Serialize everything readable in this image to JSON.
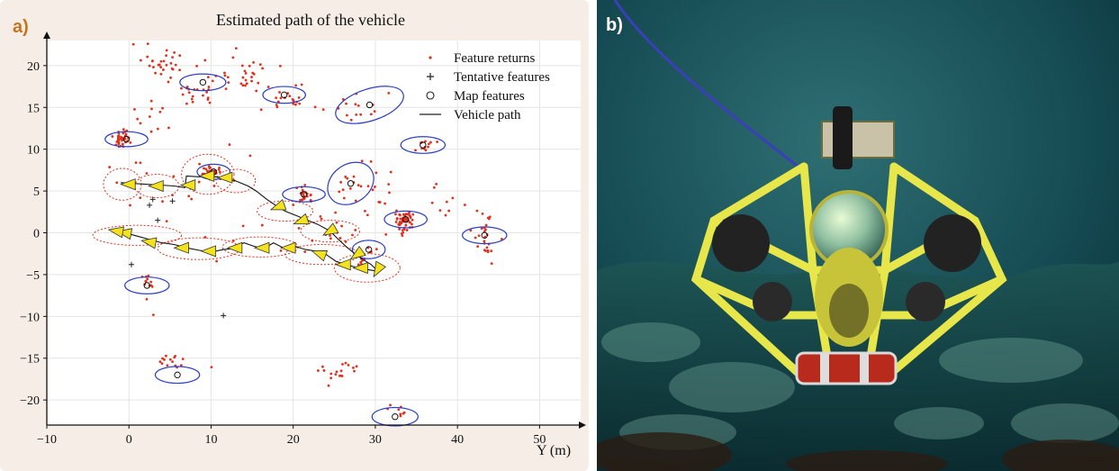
{
  "panel_a": {
    "label": "a)",
    "chart_data": {
      "type": "scatter",
      "title": "Estimated path of the vehicle",
      "xlabel": "Y (m)",
      "ylabel": "",
      "xlim": [
        -10,
        55
      ],
      "ylim": [
        -23,
        23
      ],
      "xticks": [
        -10,
        0,
        10,
        20,
        30,
        40,
        50
      ],
      "yticks": [
        -20,
        -15,
        -10,
        -5,
        0,
        5,
        10,
        15,
        20
      ],
      "grid": true,
      "legend_position": "top-right",
      "legend": [
        {
          "label": "Feature returns",
          "marker": "dot",
          "color": "#e0311f"
        },
        {
          "label": "Tentative features",
          "marker": "plus",
          "color": "#222222"
        },
        {
          "label": "Map features",
          "marker": "circle",
          "color": "#222222"
        },
        {
          "label": "Vehicle path",
          "marker": "line",
          "color": "#222222"
        }
      ],
      "colors": {
        "feature_returns": "#e0311f",
        "ellipse": "#2b3ec8",
        "vehicle_path": "#111111",
        "uncertainty": "#e0311f",
        "vehicle_pose": "#f4e21c"
      },
      "map_features": [
        {
          "x": 9.0,
          "y": 18.0,
          "rx": 2.8,
          "ry": 1.0,
          "angle": 0
        },
        {
          "x": 18.9,
          "y": 16.5,
          "rx": 2.6,
          "ry": 1.0,
          "angle": 0
        },
        {
          "x": 29.3,
          "y": 15.3,
          "rx": 4.3,
          "ry": 1.9,
          "angle": -18
        },
        {
          "x": -0.3,
          "y": 11.2,
          "rx": 2.6,
          "ry": 0.9,
          "angle": 0
        },
        {
          "x": 35.8,
          "y": 10.5,
          "rx": 2.7,
          "ry": 1.0,
          "angle": 0
        },
        {
          "x": 10.3,
          "y": 7.3,
          "rx": 2.0,
          "ry": 0.9,
          "angle": 0
        },
        {
          "x": 27.0,
          "y": 5.9,
          "rx": 3.0,
          "ry": 2.3,
          "angle": -35
        },
        {
          "x": 21.3,
          "y": 4.6,
          "rx": 2.6,
          "ry": 0.9,
          "angle": 0
        },
        {
          "x": 33.7,
          "y": 1.6,
          "rx": 2.6,
          "ry": 1.0,
          "angle": 0
        },
        {
          "x": 43.3,
          "y": -0.3,
          "rx": 2.7,
          "ry": 1.0,
          "angle": 0
        },
        {
          "x": 29.2,
          "y": -2.0,
          "rx": 2.0,
          "ry": 1.1,
          "angle": 0
        },
        {
          "x": 2.2,
          "y": -6.3,
          "rx": 2.7,
          "ry": 1.0,
          "angle": 0
        },
        {
          "x": 5.9,
          "y": -17.0,
          "rx": 2.7,
          "ry": 1.0,
          "angle": 0
        },
        {
          "x": 32.4,
          "y": -22.0,
          "rx": 2.8,
          "ry": 1.1,
          "angle": 0
        }
      ],
      "tentative_features": [
        [
          2.5,
          3.3
        ],
        [
          2.9,
          4.0
        ],
        [
          3.5,
          1.5
        ],
        [
          5.3,
          3.8
        ],
        [
          0.3,
          -3.8
        ],
        [
          11.5,
          -9.9
        ]
      ],
      "feature_return_clusters": [
        {
          "x": 4.5,
          "y": 20.5,
          "sx": 3.5,
          "sy": 2.0,
          "n": 34
        },
        {
          "x": 8.5,
          "y": 17.0,
          "sx": 3.0,
          "sy": 1.6,
          "n": 24
        },
        {
          "x": 14.0,
          "y": 18.5,
          "sx": 3.0,
          "sy": 1.8,
          "n": 26
        },
        {
          "x": 19.5,
          "y": 16.0,
          "sx": 3.0,
          "sy": 1.4,
          "n": 22
        },
        {
          "x": 27.0,
          "y": 14.5,
          "sx": 4.0,
          "sy": 2.0,
          "n": 14
        },
        {
          "x": -0.8,
          "y": 11.3,
          "sx": 0.9,
          "sy": 1.0,
          "n": 40
        },
        {
          "x": 3.0,
          "y": 14.0,
          "sx": 2.5,
          "sy": 2.0,
          "n": 10
        },
        {
          "x": 10.2,
          "y": 7.3,
          "sx": 0.9,
          "sy": 0.6,
          "n": 28
        },
        {
          "x": 21.3,
          "y": 4.6,
          "sx": 0.8,
          "sy": 0.6,
          "n": 24
        },
        {
          "x": 27.0,
          "y": 6.0,
          "sx": 1.6,
          "sy": 1.5,
          "n": 12
        },
        {
          "x": 33.6,
          "y": 1.4,
          "sx": 0.9,
          "sy": 1.1,
          "n": 60
        },
        {
          "x": 30.0,
          "y": 5.0,
          "sx": 3.0,
          "sy": 3.0,
          "n": 14
        },
        {
          "x": 35.8,
          "y": 10.5,
          "sx": 1.5,
          "sy": 1.0,
          "n": 12
        },
        {
          "x": 43.5,
          "y": -0.5,
          "sx": 1.0,
          "sy": 2.3,
          "n": 26
        },
        {
          "x": 38.5,
          "y": 3.0,
          "sx": 3.0,
          "sy": 2.5,
          "n": 10
        },
        {
          "x": 25.0,
          "y": 0.0,
          "sx": 3.0,
          "sy": 2.0,
          "n": 14
        },
        {
          "x": 28.5,
          "y": -2.5,
          "sx": 2.0,
          "sy": 1.5,
          "n": 14
        },
        {
          "x": 2.3,
          "y": -6.0,
          "sx": 1.0,
          "sy": 0.8,
          "n": 12
        },
        {
          "x": 5.0,
          "y": -15.5,
          "sx": 2.0,
          "sy": 1.2,
          "n": 14
        },
        {
          "x": 25.5,
          "y": -16.5,
          "sx": 1.8,
          "sy": 1.6,
          "n": 18
        },
        {
          "x": 33.0,
          "y": -21.3,
          "sx": 1.5,
          "sy": 0.5,
          "n": 8
        },
        {
          "x": 10.0,
          "y": 3.0,
          "sx": 12.0,
          "sy": 10.0,
          "n": 30
        }
      ],
      "vehicle_path": [
        [
          -1,
          6.0
        ],
        [
          5.5,
          5.6
        ],
        [
          6.8,
          5.4
        ],
        [
          7.0,
          6.8
        ],
        [
          8.5,
          6.7
        ],
        [
          9.8,
          6.8
        ],
        [
          11.2,
          6.6
        ],
        [
          13.0,
          6.2
        ],
        [
          14.5,
          5.6
        ],
        [
          15.5,
          5.0
        ],
        [
          16.8,
          4.0
        ],
        [
          18.0,
          3.2
        ],
        [
          19.0,
          2.6
        ],
        [
          20.5,
          2.0
        ],
        [
          22.0,
          1.4
        ],
        [
          23.0,
          1.0
        ],
        [
          24.5,
          0.2
        ],
        [
          25.5,
          -0.8
        ],
        [
          26.5,
          -1.7
        ],
        [
          27.5,
          -2.5
        ],
        [
          28.5,
          -3.2
        ],
        [
          29.5,
          -3.8
        ],
        [
          30.3,
          -4.6
        ],
        [
          29.0,
          -4.4
        ],
        [
          27.6,
          -4.1
        ],
        [
          26.4,
          -3.8
        ],
        [
          25.2,
          -3.4
        ],
        [
          24.0,
          -2.6
        ],
        [
          22.8,
          -2.2
        ],
        [
          21.5,
          -2.0
        ],
        [
          20.2,
          -1.6
        ],
        [
          18.8,
          -1.8
        ],
        [
          17.6,
          -1.2
        ],
        [
          16.4,
          -1.9
        ],
        [
          15.2,
          -1.6
        ],
        [
          14.0,
          -1.2
        ],
        [
          12.6,
          -1.9
        ],
        [
          11.5,
          -2.0
        ],
        [
          10.0,
          -2.3
        ],
        [
          8.6,
          -2.1
        ],
        [
          7.0,
          -1.8
        ],
        [
          5.5,
          -1.4
        ],
        [
          4.0,
          -1.2
        ],
        [
          2.5,
          -0.8
        ],
        [
          1.0,
          -0.4
        ],
        [
          -0.5,
          0.0
        ],
        [
          -1.5,
          0.3
        ]
      ],
      "vehicle_poses": [
        {
          "x": 0.0,
          "y": 5.8,
          "angle": 180
        },
        {
          "x": 3.4,
          "y": 5.6,
          "angle": 180
        },
        {
          "x": 7.3,
          "y": 5.7,
          "angle": 180
        },
        {
          "x": 9.6,
          "y": 6.8,
          "angle": 180
        },
        {
          "x": 11.8,
          "y": 6.6,
          "angle": 180
        },
        {
          "x": 18.2,
          "y": 3.1,
          "angle": 200
        },
        {
          "x": 21.0,
          "y": 1.4,
          "angle": 200
        },
        {
          "x": 24.5,
          "y": 0.2,
          "angle": 210
        },
        {
          "x": 27.8,
          "y": -2.6,
          "angle": 215
        },
        {
          "x": 30.3,
          "y": -4.4,
          "angle": 240
        },
        {
          "x": 28.3,
          "y": -4.2,
          "angle": 180
        },
        {
          "x": 26.2,
          "y": -3.8,
          "angle": 180
        },
        {
          "x": 23.2,
          "y": -2.5,
          "angle": 160
        },
        {
          "x": 19.5,
          "y": -1.8,
          "angle": 180
        },
        {
          "x": 16.3,
          "y": -1.8,
          "angle": 180
        },
        {
          "x": 13.0,
          "y": -1.8,
          "angle": 180
        },
        {
          "x": 9.8,
          "y": -2.2,
          "angle": 180
        },
        {
          "x": 6.5,
          "y": -1.8,
          "angle": 180
        },
        {
          "x": 2.5,
          "y": -1.1,
          "angle": 170
        },
        {
          "x": -0.5,
          "y": 0.0,
          "angle": 170
        },
        {
          "x": -1.5,
          "y": 0.2,
          "angle": 170
        }
      ],
      "pose_uncertainty": [
        {
          "x": -0.8,
          "y": 5.8,
          "rx": 2.3,
          "ry": 1.9
        },
        {
          "x": 3.4,
          "y": 5.6,
          "rx": 2.7,
          "ry": 1.4
        },
        {
          "x": 9.6,
          "y": 7.0,
          "rx": 3.2,
          "ry": 2.4
        },
        {
          "x": 13.0,
          "y": 6.2,
          "rx": 2.4,
          "ry": 1.4
        },
        {
          "x": 19.0,
          "y": 2.6,
          "rx": 3.4,
          "ry": 1.2
        },
        {
          "x": 24.5,
          "y": 0.2,
          "rx": 3.6,
          "ry": 1.3
        },
        {
          "x": 29.0,
          "y": -4.2,
          "rx": 4.0,
          "ry": 1.7
        },
        {
          "x": 23.5,
          "y": -2.6,
          "rx": 4.5,
          "ry": 1.2
        },
        {
          "x": 16.0,
          "y": -1.7,
          "rx": 4.6,
          "ry": 1.2
        },
        {
          "x": 8.5,
          "y": -1.9,
          "rx": 5.0,
          "ry": 1.3
        },
        {
          "x": 1.0,
          "y": -0.3,
          "rx": 5.4,
          "ry": 1.2
        }
      ]
    }
  },
  "panel_b": {
    "label": "b)",
    "photo": {
      "subject": "yellow underwater vehicle with dome camera",
      "background_color": "#0e3a43",
      "frame_color": "#e7e64a",
      "tether_color": "#3b3fb8"
    }
  }
}
